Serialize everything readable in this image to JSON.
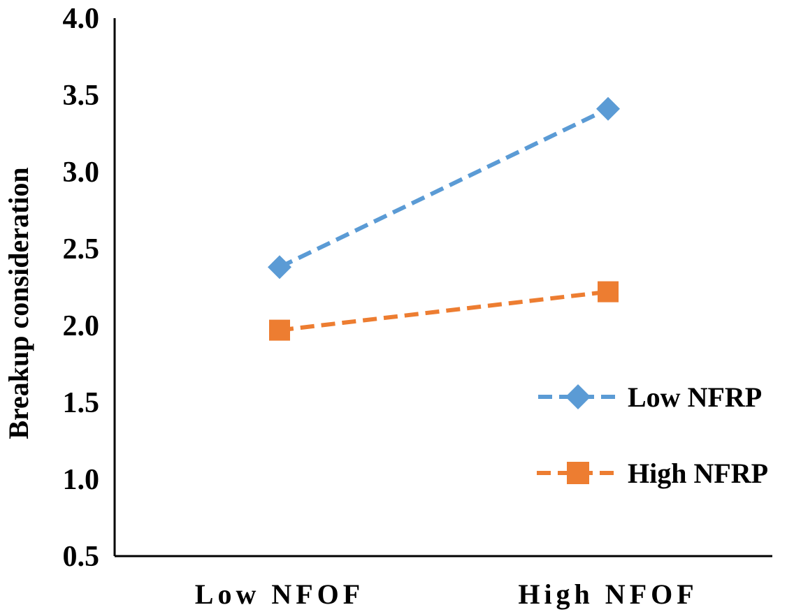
{
  "chart_data": {
    "type": "line",
    "title": "",
    "xlabel": "",
    "ylabel": "Breakup consideration",
    "categories": [
      "Low NFOF",
      "High NFOF"
    ],
    "ylim": [
      0.5,
      4.0
    ],
    "yticks": [
      "0.5",
      "1.0",
      "1.5",
      "2.0",
      "2.5",
      "3.0",
      "3.5",
      "4.0"
    ],
    "ytick_values": [
      0.5,
      1.0,
      1.5,
      2.0,
      2.5,
      3.0,
      3.5,
      4.0
    ],
    "grid": false,
    "legend_position": "right",
    "series": [
      {
        "name": "Low NFRP",
        "values": [
          2.38,
          3.41
        ],
        "color": "#5b9bd5",
        "marker": "diamond",
        "line_style": "dashed"
      },
      {
        "name": "High NFRP",
        "values": [
          1.97,
          2.22
        ],
        "color": "#ed7d31",
        "marker": "square",
        "line_style": "dashed"
      }
    ]
  }
}
